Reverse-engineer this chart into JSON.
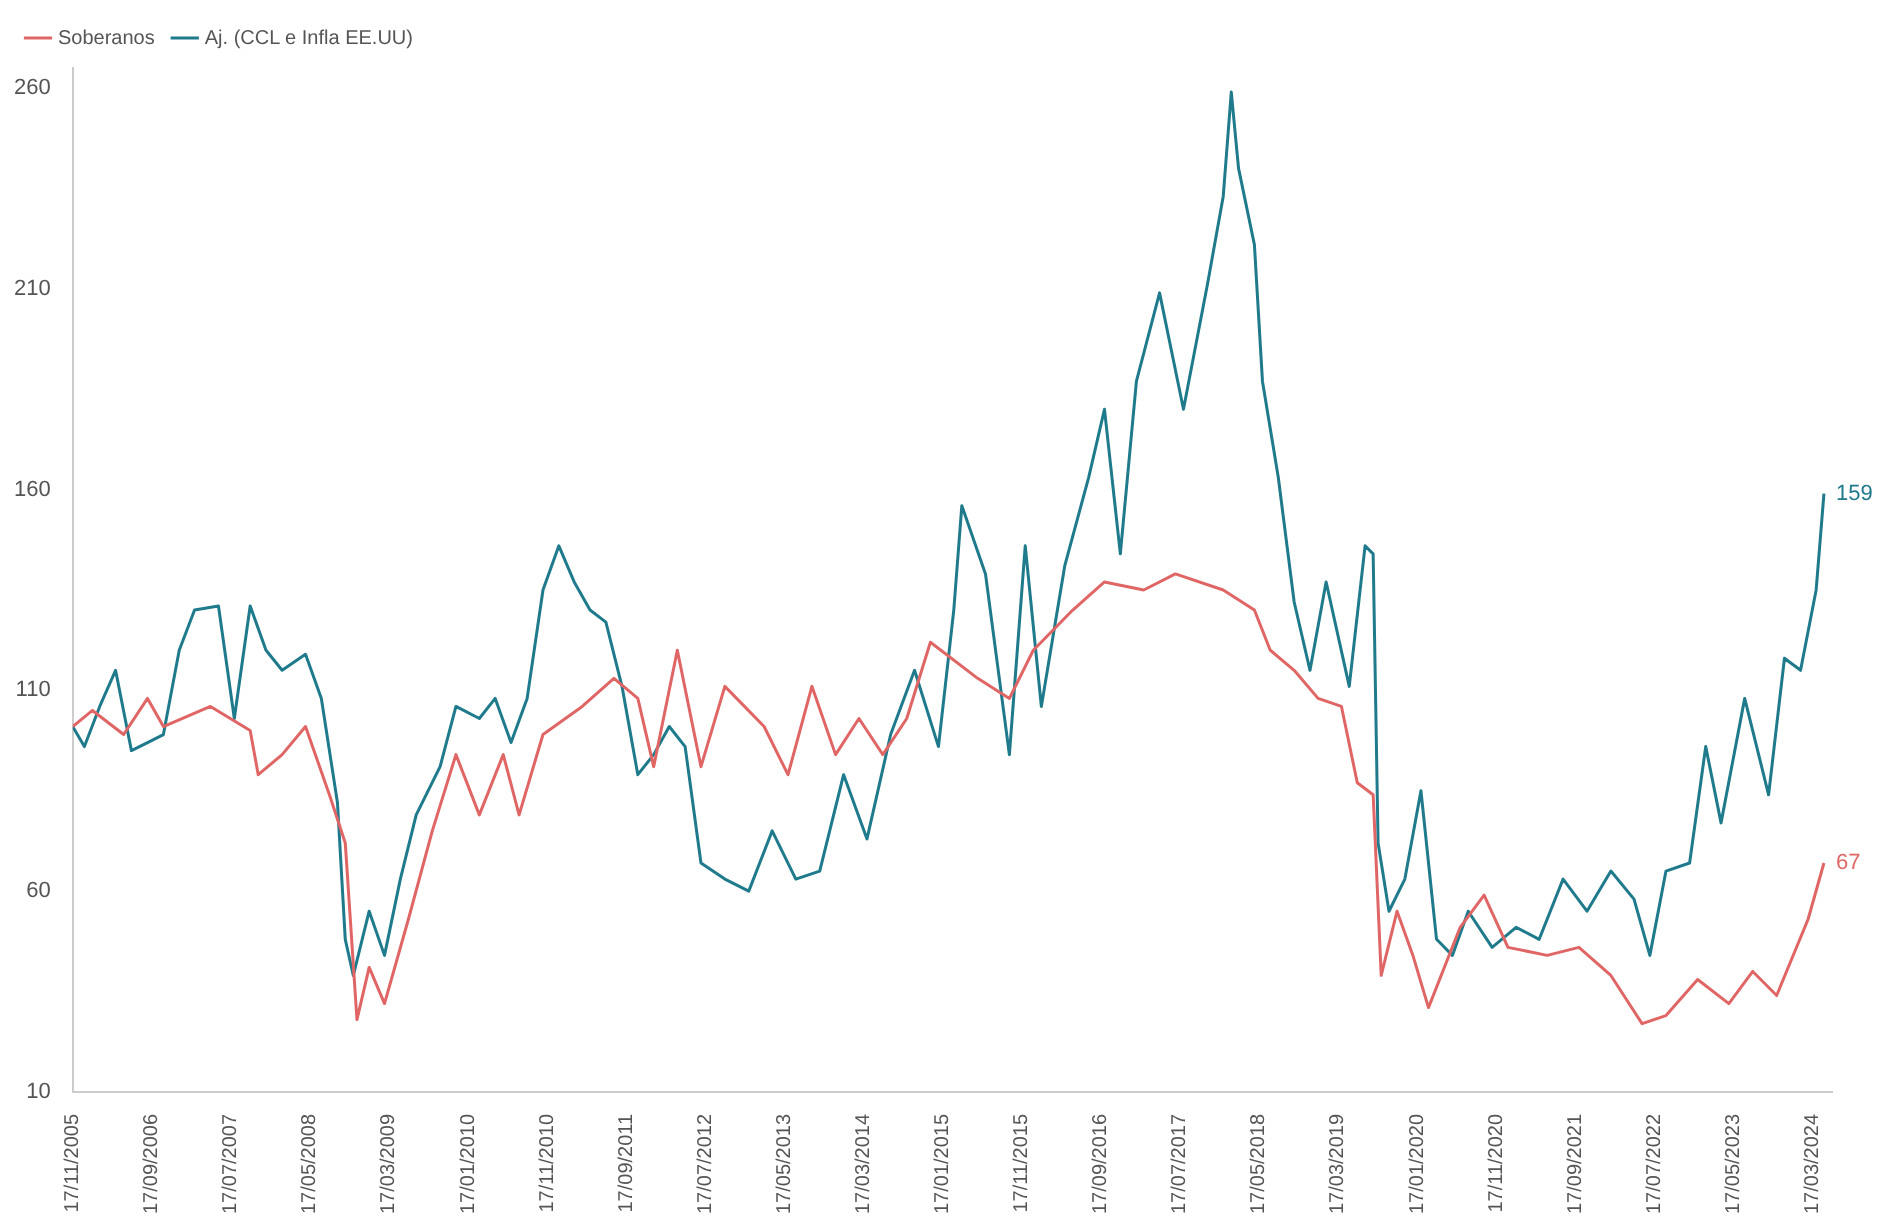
{
  "chart_data": {
    "type": "line",
    "legend": "top left",
    "grid": false,
    "marker": "none",
    "line_style": "solid",
    "xlim": [
      "2005-11-17",
      "2024-06-01"
    ],
    "ylim": [
      10,
      265
    ],
    "yticks": [
      10,
      60,
      110,
      160,
      210,
      260
    ],
    "xticks": [
      {
        "value": "2005-11-17",
        "label": "17/11/2005"
      },
      {
        "value": "2006-09-17",
        "label": "17/09/2006"
      },
      {
        "value": "2007-07-17",
        "label": "17/07/2007"
      },
      {
        "value": "2008-05-17",
        "label": "17/05/2008"
      },
      {
        "value": "2009-03-17",
        "label": "17/03/2009"
      },
      {
        "value": "2010-01-17",
        "label": "17/01/2010"
      },
      {
        "value": "2010-11-17",
        "label": "17/11/2010"
      },
      {
        "value": "2011-09-17",
        "label": "17/09/2011"
      },
      {
        "value": "2012-07-17",
        "label": "17/07/2012"
      },
      {
        "value": "2013-05-17",
        "label": "17/05/2013"
      },
      {
        "value": "2014-03-17",
        "label": "17/03/2014"
      },
      {
        "value": "2015-01-17",
        "label": "17/01/2015"
      },
      {
        "value": "2015-11-17",
        "label": "17/11/2015"
      },
      {
        "value": "2016-09-17",
        "label": "17/09/2016"
      },
      {
        "value": "2017-07-17",
        "label": "17/07/2017"
      },
      {
        "value": "2018-05-17",
        "label": "17/05/2018"
      },
      {
        "value": "2019-03-17",
        "label": "17/03/2019"
      },
      {
        "value": "2020-01-17",
        "label": "17/01/2020"
      },
      {
        "value": "2020-11-17",
        "label": "17/11/2020"
      },
      {
        "value": "2021-09-17",
        "label": "17/09/2021"
      },
      {
        "value": "2022-07-17",
        "label": "17/07/2022"
      },
      {
        "value": "2023-05-17",
        "label": "17/05/2023"
      },
      {
        "value": "2024-03-17",
        "label": "17/03/2024"
      }
    ],
    "series": [
      {
        "name": "Soberanos",
        "color": "#e06666",
        "x": [
          "2005-11-17",
          "2006-02-01",
          "2006-06-01",
          "2006-09-01",
          "2006-11-01",
          "2007-05-01",
          "2007-10-01",
          "2007-11-01",
          "2008-02-01",
          "2008-05-01",
          "2008-08-01",
          "2008-10-01",
          "2008-11-15",
          "2009-01-01",
          "2009-03-01",
          "2009-06-01",
          "2009-09-01",
          "2009-12-01",
          "2010-03-01",
          "2010-06-01",
          "2010-08-01",
          "2010-11-01",
          "2011-04-01",
          "2011-08-01",
          "2011-11-01",
          "2012-01-01",
          "2012-04-01",
          "2012-07-01",
          "2012-10-01",
          "2013-03-01",
          "2013-06-01",
          "2013-09-01",
          "2013-12-01",
          "2014-03-01",
          "2014-06-01",
          "2014-09-01",
          "2014-12-01",
          "2015-06-01",
          "2015-10-01",
          "2016-01-01",
          "2016-06-01",
          "2016-10-01",
          "2017-03-01",
          "2017-07-01",
          "2018-01-01",
          "2018-05-01",
          "2018-07-01",
          "2018-10-01",
          "2019-01-01",
          "2019-04-01",
          "2019-06-01",
          "2019-08-01",
          "2019-09-01",
          "2019-11-01",
          "2020-01-01",
          "2020-03-01",
          "2020-07-01",
          "2020-10-01",
          "2021-01-01",
          "2021-06-01",
          "2021-10-01",
          "2022-02-01",
          "2022-06-01",
          "2022-09-01",
          "2023-01-01",
          "2023-05-01",
          "2023-08-01",
          "2023-11-01",
          "2024-03-01",
          "2024-05-01"
        ],
        "values": [
          101,
          105,
          99,
          108,
          101,
          106,
          100,
          89,
          94,
          101,
          84,
          72,
          28,
          41,
          32,
          53,
          75,
          94,
          79,
          94,
          79,
          99,
          106,
          113,
          108,
          91,
          120,
          91,
          111,
          101,
          89,
          111,
          94,
          103,
          94,
          103,
          122,
          113,
          108,
          120,
          130,
          137,
          135,
          139,
          135,
          130,
          120,
          115,
          108,
          106,
          87,
          84,
          39,
          55,
          44,
          31,
          51,
          59,
          46,
          44,
          46,
          39,
          27,
          29,
          38,
          32,
          40,
          34,
          53,
          67
        ],
        "value_labels": [
          null,
          null,
          null,
          null,
          null,
          null,
          null,
          null,
          null,
          null,
          null,
          null,
          null,
          null,
          null,
          null,
          null,
          null,
          null,
          null,
          null,
          null,
          null,
          null,
          null,
          null,
          null,
          null,
          null,
          null,
          null,
          null,
          null,
          null,
          null,
          null,
          null,
          null,
          null,
          null,
          null,
          null,
          null,
          null,
          null,
          null,
          null,
          null,
          null,
          null,
          null,
          null,
          null,
          null,
          null,
          null,
          null,
          null,
          null,
          null,
          null,
          null,
          null,
          null,
          null,
          null,
          null,
          null,
          null,
          "67"
        ]
      },
      {
        "name": "Aj. (CCL e Infla EE.UU)",
        "color": "#1f7a8c",
        "x": [
          "2005-11-17",
          "2006-01-01",
          "2006-03-01",
          "2006-05-01",
          "2006-07-01",
          "2006-09-01",
          "2006-11-01",
          "2007-01-01",
          "2007-03-01",
          "2007-06-01",
          "2007-08-01",
          "2007-10-01",
          "2007-12-01",
          "2008-02-01",
          "2008-05-01",
          "2008-07-01",
          "2008-09-01",
          "2008-10-01",
          "2008-11-01",
          "2009-01-01",
          "2009-03-01",
          "2009-05-01",
          "2009-07-01",
          "2009-10-01",
          "2009-12-01",
          "2010-03-01",
          "2010-05-01",
          "2010-07-01",
          "2010-09-01",
          "2010-11-01",
          "2011-01-01",
          "2011-03-01",
          "2011-05-01",
          "2011-07-01",
          "2011-09-01",
          "2011-11-01",
          "2012-01-01",
          "2012-03-01",
          "2012-05-01",
          "2012-07-01",
          "2012-10-01",
          "2013-01-01",
          "2013-04-01",
          "2013-07-01",
          "2013-10-01",
          "2014-01-01",
          "2014-04-01",
          "2014-07-01",
          "2014-10-01",
          "2015-01-01",
          "2015-03-01",
          "2015-04-01",
          "2015-07-01",
          "2015-10-01",
          "2015-12-01",
          "2016-02-01",
          "2016-05-01",
          "2016-08-01",
          "2016-10-01",
          "2016-12-01",
          "2017-02-01",
          "2017-05-01",
          "2017-08-01",
          "2017-11-01",
          "2018-01-01",
          "2018-02-01",
          "2018-03-01",
          "2018-05-01",
          "2018-06-01",
          "2018-08-01",
          "2018-10-01",
          "2018-12-01",
          "2019-02-01",
          "2019-05-01",
          "2019-07-01",
          "2019-08-01",
          "2019-08-20",
          "2019-10-01",
          "2019-12-01",
          "2020-02-01",
          "2020-04-01",
          "2020-06-01",
          "2020-08-01",
          "2020-11-01",
          "2021-02-01",
          "2021-05-01",
          "2021-08-01",
          "2021-11-01",
          "2022-02-01",
          "2022-05-01",
          "2022-07-01",
          "2022-09-01",
          "2022-12-01",
          "2023-02-01",
          "2023-04-01",
          "2023-07-01",
          "2023-10-01",
          "2023-12-01",
          "2024-02-01",
          "2024-04-01",
          "2024-05-01"
        ],
        "values": [
          101,
          96,
          106,
          115,
          95,
          97,
          99,
          120,
          130,
          131,
          103,
          131,
          120,
          115,
          119,
          108,
          82,
          48,
          39,
          55,
          44,
          63,
          79,
          91,
          106,
          103,
          108,
          97,
          108,
          135,
          146,
          137,
          130,
          127,
          111,
          89,
          94,
          101,
          96,
          67,
          63,
          60,
          75,
          63,
          65,
          89,
          73,
          99,
          115,
          96,
          130,
          156,
          139,
          94,
          146,
          106,
          141,
          163,
          180,
          144,
          187,
          209,
          180,
          211,
          233,
          259,
          240,
          221,
          187,
          163,
          132,
          115,
          137,
          111,
          146,
          144,
          72,
          55,
          63,
          85,
          48,
          44,
          55,
          46,
          51,
          48,
          63,
          55,
          65,
          58,
          44,
          65,
          67,
          96,
          77,
          108,
          84,
          118,
          115,
          135,
          159
        ],
        "value_labels": [
          null,
          null,
          null,
          null,
          null,
          null,
          null,
          null,
          null,
          null,
          null,
          null,
          null,
          null,
          null,
          null,
          null,
          null,
          null,
          null,
          null,
          null,
          null,
          null,
          null,
          null,
          null,
          null,
          null,
          null,
          null,
          null,
          null,
          null,
          null,
          null,
          null,
          null,
          null,
          null,
          null,
          null,
          null,
          null,
          null,
          null,
          null,
          null,
          null,
          null,
          null,
          null,
          null,
          null,
          null,
          null,
          null,
          null,
          null,
          null,
          null,
          null,
          null,
          null,
          null,
          null,
          null,
          null,
          null,
          null,
          null,
          null,
          null,
          null,
          null,
          null,
          null,
          null,
          null,
          null,
          null,
          null,
          null,
          null,
          null,
          null,
          null,
          null,
          null,
          null,
          null,
          null,
          null,
          null,
          null,
          null,
          null,
          null,
          null,
          null,
          "159"
        ]
      }
    ]
  }
}
